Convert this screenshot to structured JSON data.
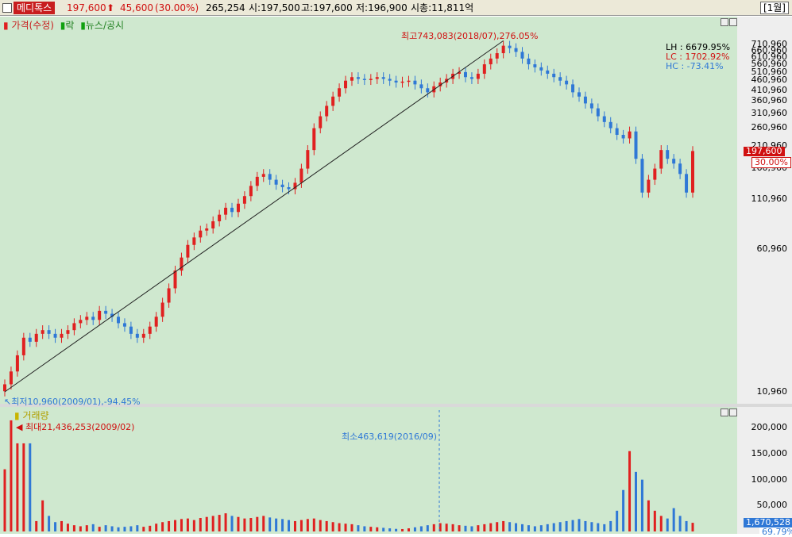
{
  "header": {
    "stock_name": "메디톡스",
    "price": "197,600",
    "change_arrow": "up-arrow-icon",
    "change": "45,600",
    "change_pct": "(30.00%)",
    "volume": "265,254",
    "open_label": "시:197,500",
    "high_label": "고:197,600",
    "low_label": "저:196,900",
    "mcap_label": "시총:11,811억",
    "period": "[1월]"
  },
  "legend": {
    "price": "가격(수정)",
    "rak": "락",
    "news": "뉴스/공시",
    "volume": "거래량"
  },
  "stats": {
    "lh": "LH : 6679.95%",
    "lc": "LC : 1702.92%",
    "hc": "HC : -73.41%"
  },
  "annotations": {
    "max_price": "최고743,083(2018/07),276.05%",
    "min_price": "최저10,960(2009/01),-94.45%",
    "max_volume": "최대21,436,253(2009/02)",
    "min_volume": "최소463,619(2016/09)"
  },
  "current": {
    "price_tag": "197,600",
    "pct_tag": "30.00%",
    "volume_tag": "1,670,528",
    "volume_pct_tag": "69.79%"
  },
  "colors": {
    "up": "#e02020",
    "down": "#2f78d6",
    "panel_bg": "#cfe8cf",
    "accent": "#c81e1e"
  },
  "chart_data": [
    {
      "type": "candlestick",
      "title": "",
      "y_scale": "log",
      "y_ticks": [
        "710,960",
        "660,960",
        "610,960",
        "560,960",
        "510,960",
        "460,960",
        "410,960",
        "360,960",
        "310,960",
        "260,960",
        "210,960",
        "160,960",
        "110,960",
        "60,960",
        "10,960"
      ],
      "trendline": "rising line from the 2009/01 low through the 2018/07 high",
      "values_close_approx": [
        12000,
        14000,
        17000,
        21000,
        20000,
        22000,
        23000,
        22000,
        21000,
        22000,
        23000,
        25000,
        26000,
        27000,
        26000,
        29000,
        28000,
        27000,
        25000,
        24000,
        22000,
        21000,
        22000,
        24000,
        27000,
        32000,
        38000,
        47000,
        55000,
        64000,
        70000,
        76000,
        78000,
        85000,
        92000,
        100000,
        95000,
        105000,
        115000,
        130000,
        145000,
        150000,
        140000,
        132000,
        128000,
        125000,
        135000,
        160000,
        200000,
        260000,
        300000,
        340000,
        380000,
        420000,
        460000,
        480000,
        470000,
        465000,
        470000,
        480000,
        470000,
        460000,
        450000,
        455000,
        460000,
        440000,
        420000,
        400000,
        430000,
        450000,
        470000,
        500000,
        510000,
        480000,
        470000,
        500000,
        560000,
        600000,
        640000,
        700000,
        680000,
        650000,
        600000,
        560000,
        540000,
        520000,
        500000,
        480000,
        460000,
        440000,
        400000,
        380000,
        350000,
        330000,
        300000,
        280000,
        260000,
        240000,
        230000,
        250000,
        180000,
        120000,
        140000,
        160000,
        200000,
        180000,
        170000,
        150000,
        120000,
        197600
      ]
    },
    {
      "type": "bar",
      "title": "",
      "y_ticks": [
        "200,000",
        "150,000",
        "100,000",
        "50,000"
      ],
      "values_approx": [
        120000,
        214362,
        170000,
        170000,
        170000,
        20000,
        60000,
        30000,
        18000,
        20000,
        15000,
        12000,
        10000,
        12000,
        14000,
        9000,
        12000,
        10000,
        8000,
        9000,
        10000,
        12000,
        9000,
        11000,
        15000,
        18000,
        20000,
        22000,
        24000,
        25000,
        22000,
        26000,
        28000,
        30000,
        32000,
        35000,
        30000,
        28000,
        25000,
        26000,
        28000,
        30000,
        27000,
        25000,
        24000,
        22000,
        20000,
        22000,
        24000,
        25000,
        22000,
        20000,
        18000,
        16000,
        15000,
        14000,
        12000,
        10000,
        9000,
        8000,
        7000,
        6000,
        5000,
        4636,
        6000,
        8000,
        10000,
        12000,
        14000,
        16000,
        15000,
        14000,
        12000,
        11000,
        10000,
        12000,
        14000,
        16000,
        18000,
        20000,
        18000,
        16000,
        14000,
        12000,
        10000,
        12000,
        14000,
        16000,
        18000,
        20000,
        22000,
        24000,
        20000,
        18000,
        16000,
        14000,
        20000,
        40000,
        80000,
        155000,
        115000,
        100000,
        60000,
        40000,
        30000,
        25000,
        45000,
        30000,
        20000,
        16705
      ]
    }
  ]
}
